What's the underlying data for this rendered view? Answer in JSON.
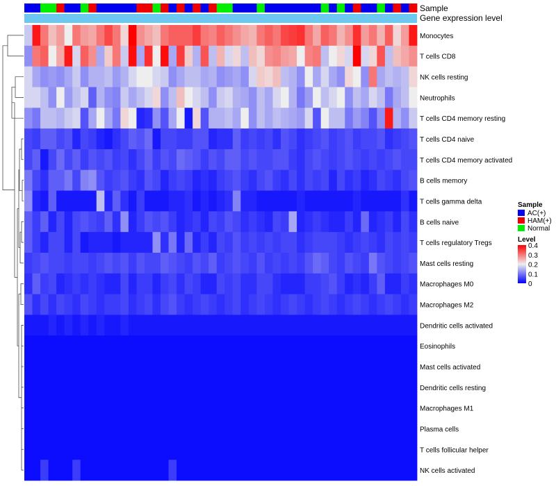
{
  "chart_data": {
    "type": "heatmap",
    "title": "",
    "annotation_tracks": [
      "Sample",
      "Gene expression level"
    ],
    "sample_groups": [
      "AC",
      "AC",
      "N",
      "N",
      "H",
      "AC",
      "AC",
      "N",
      "H",
      "AC",
      "AC",
      "AC",
      "AC",
      "AC",
      "H",
      "H",
      "N",
      "H",
      "AC",
      "H",
      "AC",
      "H",
      "AC",
      "H",
      "N",
      "N",
      "AC",
      "AC",
      "AC",
      "N",
      "AC",
      "AC",
      "AC",
      "AC",
      "AC",
      "AC",
      "AC",
      "N",
      "AC",
      "N",
      "AC",
      "H",
      "AC",
      "AC",
      "N",
      "AC",
      "H",
      "AC",
      "H"
    ],
    "rows": [
      "Monocytes",
      "T cells CD8",
      "NK cells resting",
      "Neutrophils",
      "T cells CD4 memory resting",
      "T cells CD4 naive",
      "T cells CD4 memory activated",
      "B cells memory",
      "T cells gamma delta",
      "B cells naive",
      "T cells regulatory  Tregs",
      "Mast cells resting",
      "Macrophages M0",
      "Macrophages M2",
      "Dendritic cells activated",
      "Eosinophils",
      "Mast cells activated",
      "Dendritic cells resting",
      "Macrophages M1",
      "Plasma cells",
      "T cells follicular helper",
      "NK cells activated"
    ],
    "values": [
      [
        0.17,
        0.38,
        0.3,
        0.24,
        0.27,
        0.2,
        0.3,
        0.27,
        0.26,
        0.3,
        0.34,
        0.3,
        0.22,
        0.42,
        0.28,
        0.26,
        0.24,
        0.3,
        0.32,
        0.32,
        0.32,
        0.35,
        0.3,
        0.29,
        0.32,
        0.3,
        0.28,
        0.26,
        0.25,
        0.3,
        0.32,
        0.3,
        0.34,
        0.35,
        0.36,
        0.3,
        0.26,
        0.32,
        0.3,
        0.25,
        0.28,
        0.36,
        0.27,
        0.3,
        0.25,
        0.32,
        0.22,
        0.27,
        0.38
      ],
      [
        0.12,
        0.3,
        0.32,
        0.2,
        0.26,
        0.38,
        0.18,
        0.32,
        0.28,
        0.14,
        0.23,
        0.3,
        0.17,
        0.39,
        0.14,
        0.36,
        0.2,
        0.39,
        0.14,
        0.35,
        0.23,
        0.15,
        0.33,
        0.16,
        0.25,
        0.18,
        0.22,
        0.16,
        0.24,
        0.22,
        0.28,
        0.29,
        0.27,
        0.26,
        0.2,
        0.29,
        0.3,
        0.16,
        0.2,
        0.22,
        0.18,
        0.4,
        0.18,
        0.22,
        0.33,
        0.16,
        0.24,
        0.26,
        0.28
      ],
      [
        0.18,
        0.14,
        0.12,
        0.13,
        0.12,
        0.14,
        0.17,
        0.12,
        0.15,
        0.15,
        0.16,
        0.13,
        0.15,
        0.18,
        0.2,
        0.2,
        0.18,
        0.17,
        0.12,
        0.14,
        0.16,
        0.16,
        0.14,
        0.15,
        0.12,
        0.13,
        0.14,
        0.12,
        0.18,
        0.23,
        0.22,
        0.24,
        0.16,
        0.15,
        0.12,
        0.2,
        0.14,
        0.18,
        0.14,
        0.12,
        0.22,
        0.2,
        0.12,
        0.3,
        0.14,
        0.16,
        0.15,
        0.16,
        0.22
      ],
      [
        0.18,
        0.18,
        0.16,
        0.12,
        0.2,
        0.13,
        0.16,
        0.18,
        0.08,
        0.15,
        0.12,
        0.11,
        0.17,
        0.14,
        0.16,
        0.18,
        0.22,
        0.12,
        0.16,
        0.24,
        0.2,
        0.18,
        0.16,
        0.12,
        0.17,
        0.18,
        0.15,
        0.14,
        0.12,
        0.16,
        0.14,
        0.18,
        0.2,
        0.15,
        0.1,
        0.13,
        0.2,
        0.16,
        0.18,
        0.2,
        0.12,
        0.16,
        0.14,
        0.18,
        0.16,
        0.1,
        0.14,
        0.16,
        0.2
      ],
      [
        0.12,
        0.1,
        0.16,
        0.16,
        0.15,
        0.17,
        0.18,
        0.07,
        0.14,
        0.2,
        0.14,
        0.1,
        0.22,
        0.2,
        0.03,
        0.04,
        0.12,
        0.07,
        0.14,
        0.2,
        0.02,
        0.22,
        0.07,
        0.15,
        0.15,
        0.16,
        0.14,
        0.2,
        0.12,
        0.16,
        0.14,
        0.16,
        0.15,
        0.14,
        0.13,
        0.18,
        0.07,
        0.2,
        0.16,
        0.16,
        0.1,
        0.13,
        0.11,
        0.07,
        0.12,
        0.38,
        0.15,
        0.12,
        0.17
      ],
      [
        0.06,
        0.05,
        0.08,
        0.08,
        0.06,
        0.07,
        0.03,
        0.06,
        0.05,
        0.03,
        0.02,
        0.04,
        0.06,
        0.08,
        0.07,
        0.09,
        0.02,
        0.06,
        0.06,
        0.05,
        0.05,
        0.07,
        0.07,
        0.03,
        0.04,
        0.04,
        0.08,
        0.05,
        0.06,
        0.05,
        0.06,
        0.04,
        0.07,
        0.06,
        0.04,
        0.05,
        0.06,
        0.07,
        0.05,
        0.06,
        0.07,
        0.05,
        0.06,
        0.06,
        0.07,
        0.04,
        0.05,
        0.06,
        0.07
      ],
      [
        0.06,
        0.08,
        0.02,
        0.06,
        0.09,
        0.06,
        0.08,
        0.05,
        0.07,
        0.06,
        0.07,
        0.05,
        0.06,
        0.04,
        0.06,
        0.08,
        0.05,
        0.07,
        0.06,
        0.09,
        0.08,
        0.07,
        0.05,
        0.07,
        0.06,
        0.08,
        0.08,
        0.06,
        0.07,
        0.06,
        0.06,
        0.07,
        0.07,
        0.05,
        0.04,
        0.06,
        0.07,
        0.06,
        0.05,
        0.06,
        0.07,
        0.06,
        0.05,
        0.06,
        0.05,
        0.06,
        0.07,
        0.06,
        0.06
      ],
      [
        0.1,
        0.06,
        0.04,
        0.08,
        0.08,
        0.1,
        0.06,
        0.11,
        0.12,
        0.07,
        0.05,
        0.06,
        0.07,
        0.05,
        0.04,
        0.07,
        0.06,
        0.03,
        0.05,
        0.06,
        0.05,
        0.03,
        0.04,
        0.03,
        0.05,
        0.06,
        0.07,
        0.05,
        0.04,
        0.06,
        0.07,
        0.05,
        0.04,
        0.06,
        0.04,
        0.06,
        0.05,
        0.06,
        0.03,
        0.06,
        0.04,
        0.05,
        0.03,
        0.04,
        0.06,
        0.05,
        0.04,
        0.06,
        0.07
      ],
      [
        0.12,
        0.03,
        0.02,
        0.08,
        0.02,
        0.02,
        0.02,
        0.02,
        0.02,
        0.16,
        0.03,
        0.08,
        0.04,
        0.02,
        0.05,
        0.02,
        0.02,
        0.02,
        0.03,
        0.03,
        0.04,
        0.02,
        0.03,
        0.02,
        0.03,
        0.04,
        0.11,
        0.03,
        0.03,
        0.02,
        0.02,
        0.02,
        0.02,
        0.02,
        0.03,
        0.02,
        0.02,
        0.02,
        0.02,
        0.02,
        0.02,
        0.03,
        0.02,
        0.02,
        0.02,
        0.02,
        0.02,
        0.04,
        0.02
      ],
      [
        0.08,
        0.05,
        0.08,
        0.03,
        0.06,
        0.03,
        0.06,
        0.07,
        0.06,
        0.05,
        0.08,
        0.04,
        0.12,
        0.03,
        0.05,
        0.07,
        0.06,
        0.07,
        0.05,
        0.03,
        0.04,
        0.05,
        0.03,
        0.06,
        0.05,
        0.07,
        0.06,
        0.04,
        0.05,
        0.04,
        0.03,
        0.06,
        0.05,
        0.14,
        0.03,
        0.04,
        0.05,
        0.04,
        0.03,
        0.03,
        0.05,
        0.03,
        0.09,
        0.03,
        0.04,
        0.05,
        0.03,
        0.06,
        0.04
      ],
      [
        0.08,
        0.05,
        0.03,
        0.06,
        0.06,
        0.03,
        0.06,
        0.02,
        0.03,
        0.03,
        0.03,
        0.02,
        0.03,
        0.03,
        0.03,
        0.03,
        0.12,
        0.04,
        0.1,
        0.03,
        0.09,
        0.03,
        0.05,
        0.03,
        0.06,
        0.05,
        0.07,
        0.05,
        0.06,
        0.05,
        0.06,
        0.05,
        0.06,
        0.06,
        0.04,
        0.05,
        0.06,
        0.06,
        0.06,
        0.05,
        0.04,
        0.05,
        0.06,
        0.05,
        0.04,
        0.06,
        0.05,
        0.06,
        0.05
      ],
      [
        0.05,
        0.06,
        0.07,
        0.06,
        0.06,
        0.05,
        0.06,
        0.06,
        0.05,
        0.06,
        0.07,
        0.06,
        0.07,
        0.05,
        0.07,
        0.06,
        0.06,
        0.08,
        0.07,
        0.06,
        0.05,
        0.07,
        0.06,
        0.08,
        0.05,
        0.06,
        0.07,
        0.06,
        0.05,
        0.07,
        0.05,
        0.06,
        0.05,
        0.06,
        0.05,
        0.07,
        0.09,
        0.08,
        0.06,
        0.05,
        0.07,
        0.06,
        0.05,
        0.1,
        0.07,
        0.06,
        0.05,
        0.06,
        0.07
      ],
      [
        0.04,
        0.08,
        0.05,
        0.06,
        0.03,
        0.04,
        0.05,
        0.04,
        0.05,
        0.04,
        0.03,
        0.03,
        0.06,
        0.03,
        0.05,
        0.05,
        0.03,
        0.05,
        0.06,
        0.04,
        0.06,
        0.05,
        0.03,
        0.03,
        0.06,
        0.05,
        0.06,
        0.04,
        0.04,
        0.06,
        0.06,
        0.04,
        0.03,
        0.03,
        0.03,
        0.05,
        0.05,
        0.06,
        0.07,
        0.05,
        0.03,
        0.04,
        0.03,
        0.05,
        0.08,
        0.03,
        0.03,
        0.05,
        0.04
      ],
      [
        0.07,
        0.04,
        0.06,
        0.04,
        0.06,
        0.05,
        0.04,
        0.06,
        0.05,
        0.04,
        0.05,
        0.05,
        0.06,
        0.04,
        0.05,
        0.06,
        0.04,
        0.06,
        0.07,
        0.05,
        0.04,
        0.05,
        0.06,
        0.05,
        0.04,
        0.05,
        0.06,
        0.04,
        0.05,
        0.06,
        0.05,
        0.04,
        0.05,
        0.06,
        0.05,
        0.04,
        0.05,
        0.06,
        0.05,
        0.04,
        0.05,
        0.06,
        0.05,
        0.04,
        0.05,
        0.06,
        0.05,
        0.04,
        0.05
      ],
      [
        0.02,
        0.02,
        0.02,
        0.03,
        0.02,
        0.03,
        0.02,
        0.03,
        0.02,
        0.03,
        0.02,
        0.02,
        0.03,
        0.02,
        0.02,
        0.02,
        0.02,
        0.02,
        0.02,
        0.02,
        0.02,
        0.02,
        0.02,
        0.02,
        0.02,
        0.02,
        0.02,
        0.02,
        0.02,
        0.02,
        0.02,
        0.02,
        0.02,
        0.02,
        0.02,
        0.02,
        0.02,
        0.02,
        0.02,
        0.02,
        0.02,
        0.02,
        0.02,
        0.02,
        0.02,
        0.02,
        0.02,
        0.02,
        0.02
      ],
      [
        0.01,
        0.01,
        0.01,
        0.01,
        0.01,
        0.01,
        0.01,
        0.01,
        0.01,
        0.01,
        0.01,
        0.01,
        0.01,
        0.01,
        0.01,
        0.01,
        0.01,
        0.01,
        0.01,
        0.01,
        0.01,
        0.01,
        0.01,
        0.01,
        0.01,
        0.01,
        0.01,
        0.01,
        0.01,
        0.01,
        0.01,
        0.01,
        0.01,
        0.01,
        0.01,
        0.01,
        0.01,
        0.01,
        0.01,
        0.01,
        0.01,
        0.01,
        0.01,
        0.01,
        0.01,
        0.01,
        0.01,
        0.01,
        0.01
      ],
      [
        0.01,
        0.01,
        0.01,
        0.01,
        0.01,
        0.01,
        0.01,
        0.01,
        0.01,
        0.01,
        0.01,
        0.01,
        0.01,
        0.01,
        0.01,
        0.01,
        0.01,
        0.01,
        0.01,
        0.01,
        0.01,
        0.01,
        0.01,
        0.01,
        0.01,
        0.01,
        0.01,
        0.01,
        0.01,
        0.01,
        0.01,
        0.01,
        0.01,
        0.01,
        0.01,
        0.01,
        0.01,
        0.01,
        0.01,
        0.01,
        0.01,
        0.01,
        0.01,
        0.01,
        0.01,
        0.01,
        0.01,
        0.01,
        0.01
      ],
      [
        0.01,
        0.01,
        0.01,
        0.01,
        0.01,
        0.01,
        0.01,
        0.01,
        0.01,
        0.01,
        0.01,
        0.01,
        0.01,
        0.01,
        0.01,
        0.01,
        0.01,
        0.01,
        0.01,
        0.01,
        0.01,
        0.01,
        0.01,
        0.01,
        0.01,
        0.01,
        0.01,
        0.01,
        0.01,
        0.01,
        0.01,
        0.01,
        0.01,
        0.01,
        0.01,
        0.01,
        0.01,
        0.01,
        0.01,
        0.01,
        0.01,
        0.01,
        0.01,
        0.01,
        0.01,
        0.01,
        0.01,
        0.01,
        0.01
      ],
      [
        0.01,
        0.01,
        0.01,
        0.01,
        0.01,
        0.01,
        0.01,
        0.01,
        0.01,
        0.01,
        0.01,
        0.01,
        0.01,
        0.01,
        0.01,
        0.01,
        0.01,
        0.01,
        0.01,
        0.01,
        0.01,
        0.01,
        0.01,
        0.01,
        0.01,
        0.01,
        0.01,
        0.01,
        0.01,
        0.01,
        0.01,
        0.01,
        0.01,
        0.01,
        0.01,
        0.01,
        0.01,
        0.01,
        0.01,
        0.01,
        0.01,
        0.01,
        0.01,
        0.01,
        0.01,
        0.01,
        0.01,
        0.01,
        0.01
      ],
      [
        0.01,
        0.01,
        0.01,
        0.01,
        0.01,
        0.01,
        0.01,
        0.01,
        0.01,
        0.01,
        0.01,
        0.01,
        0.01,
        0.01,
        0.01,
        0.01,
        0.01,
        0.01,
        0.01,
        0.01,
        0.01,
        0.01,
        0.01,
        0.01,
        0.01,
        0.01,
        0.01,
        0.01,
        0.01,
        0.01,
        0.01,
        0.01,
        0.01,
        0.01,
        0.01,
        0.01,
        0.01,
        0.01,
        0.01,
        0.01,
        0.01,
        0.01,
        0.01,
        0.01,
        0.01,
        0.01,
        0.01,
        0.01,
        0.01
      ],
      [
        0.01,
        0.01,
        0.01,
        0.01,
        0.01,
        0.01,
        0.01,
        0.01,
        0.01,
        0.01,
        0.01,
        0.01,
        0.01,
        0.01,
        0.01,
        0.01,
        0.01,
        0.01,
        0.01,
        0.01,
        0.01,
        0.01,
        0.01,
        0.01,
        0.01,
        0.01,
        0.01,
        0.01,
        0.01,
        0.01,
        0.01,
        0.01,
        0.01,
        0.01,
        0.01,
        0.01,
        0.01,
        0.01,
        0.01,
        0.01,
        0.01,
        0.01,
        0.01,
        0.01,
        0.01,
        0.01,
        0.01,
        0.01,
        0.01
      ],
      [
        0.01,
        0.01,
        0.05,
        0.01,
        0.01,
        0.01,
        0.05,
        0.01,
        0.01,
        0.01,
        0.01,
        0.01,
        0.01,
        0.01,
        0.01,
        0.01,
        0.01,
        0.01,
        0.05,
        0.01,
        0.01,
        0.01,
        0.01,
        0.01,
        0.01,
        0.01,
        0.01,
        0.01,
        0.01,
        0.01,
        0.01,
        0.01,
        0.01,
        0.01,
        0.01,
        0.01,
        0.01,
        0.01,
        0.01,
        0.01,
        0.01,
        0.01,
        0.01,
        0.01,
        0.01,
        0.01,
        0.01,
        0.01,
        0.01
      ]
    ],
    "color_scale": {
      "min": 0,
      "max": 0.4,
      "low": "#0000ff",
      "mid": "#eeeeee",
      "high": "#ff0000",
      "mid_value": 0.2
    },
    "gene_expression_color": "#6cc8f0",
    "legend": {
      "sample": {
        "title": "Sample",
        "items": [
          {
            "code": "AC",
            "label": "AC(+)",
            "color": "#0000ee"
          },
          {
            "code": "H",
            "label": "HAM(+)",
            "color": "#ee0000"
          },
          {
            "code": "N",
            "label": "Normal",
            "color": "#00ee00"
          }
        ]
      },
      "level": {
        "title": "Level",
        "ticks": [
          0.4,
          0.3,
          0.2,
          0.1,
          0
        ],
        "tick_labels": [
          "0.4",
          "0.3",
          "0.2",
          "0.1",
          "0"
        ]
      },
      "placement": "right"
    }
  }
}
